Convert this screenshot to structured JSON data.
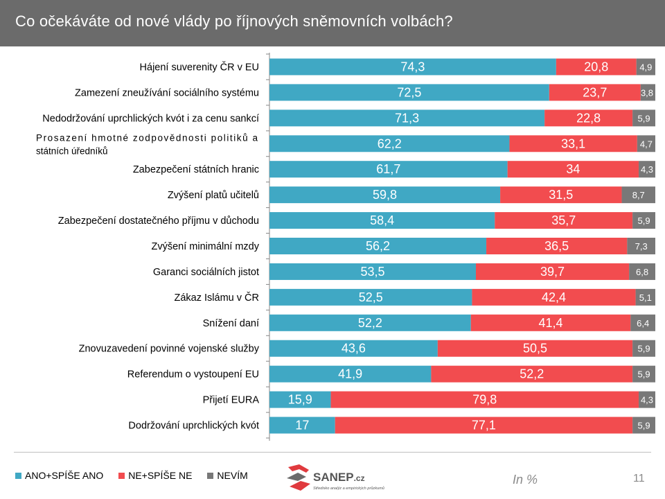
{
  "header": {
    "title": "Co očekáváte od nové vlády po říjnových sněmovních  volbách?"
  },
  "colors": {
    "yes": "#40a8c4",
    "no": "#f24c4f",
    "dontknow": "#787878",
    "header": "#6b6b6b"
  },
  "chart_data": {
    "type": "bar",
    "orientation": "horizontal",
    "stacked": true,
    "title": "Co očekáváte od nové vlády po říjnových sněmovních  volbách?",
    "xlim": [
      0,
      100
    ],
    "grid": false,
    "legend_position": "bottom-left",
    "categories": [
      "Hájení suverenity ČR v EU",
      "Zamezení zneužívání sociálního systému",
      "Nedodržování uprchlických kvót i za cenu sankcí",
      "Prosazení hmotné zodpovědnosti politiků a státních úředníků",
      "Zabezpečení státních hranic",
      "Zvýšení platů učitelů",
      "Zabezpečení dostatečného příjmu v důchodu",
      "Zvýšení minimální mzdy",
      "Garanci sociálních jistot",
      "Zákaz Islámu v ČR",
      "Snížení daní",
      "Znovuzavedení povinné vojenské služby",
      "Referendum o vystoupení EU",
      "Přijetí EURA",
      "Dodržování uprchlických kvót"
    ],
    "series": [
      {
        "name": "ANO+SPÍŠE ANO",
        "values": [
          74.3,
          72.5,
          71.3,
          62.2,
          61.7,
          59.8,
          58.4,
          56.2,
          53.5,
          52.5,
          52.2,
          43.6,
          41.9,
          15.9,
          17
        ]
      },
      {
        "name": "NE+SPÍŠE NE",
        "values": [
          20.8,
          23.7,
          22.8,
          33.1,
          34,
          31.5,
          35.7,
          36.5,
          39.7,
          42.4,
          41.4,
          50.5,
          52.2,
          79.8,
          77.1
        ]
      },
      {
        "name": "NEVÍM",
        "values": [
          4.9,
          3.8,
          5.9,
          4.7,
          4.3,
          8.7,
          5.9,
          7.3,
          6.8,
          5.1,
          6.4,
          5.9,
          5.9,
          4.3,
          5.9
        ]
      }
    ],
    "value_labels": [
      [
        "74,3",
        "72,5",
        "71,3",
        "62,2",
        "61,7",
        "59,8",
        "58,4",
        "56,2",
        "53,5",
        "52,5",
        "52,2",
        "43,6",
        "41,9",
        "15,9",
        "17"
      ],
      [
        "20,8",
        "23,7",
        "22,8",
        "33,1",
        "34",
        "31,5",
        "35,7",
        "36,5",
        "39,7",
        "42,4",
        "41,4",
        "50,5",
        "52,2",
        "79,8",
        "77,1"
      ],
      [
        "4,9",
        "3,8",
        "5,9",
        "4,7",
        "4,3",
        "8,7",
        "5,9",
        "7,3",
        "6,8",
        "5,1",
        "6,4",
        "5,9",
        "5,9",
        "4,3",
        "5,9"
      ]
    ]
  },
  "logo": {
    "brand": "SANEP",
    "suffix": ".cz",
    "tagline": "Středisko analýz a empirických průzkumů"
  },
  "footer": {
    "unit": "In %",
    "page": "11"
  }
}
